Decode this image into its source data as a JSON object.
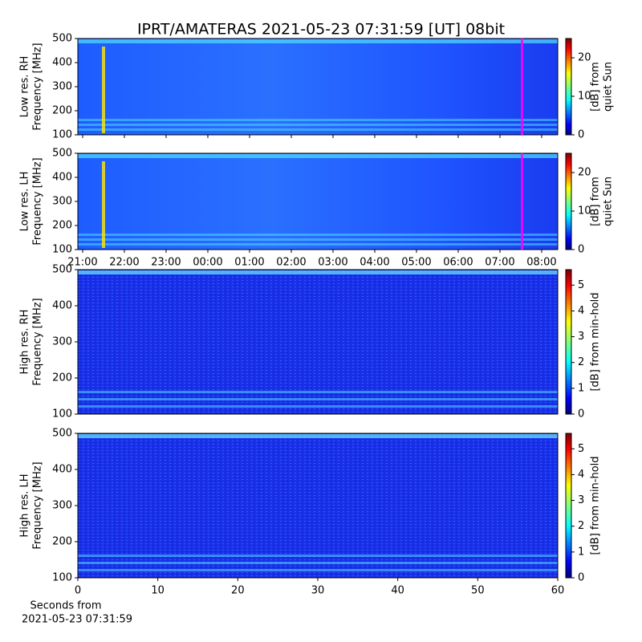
{
  "title": "IPRT/AMATERAS 2021-05-23 07:31:59 [UT]   08bit",
  "chart_data": [
    {
      "type": "heatmap",
      "ylabel": [
        "Low res. RH",
        "Frequency [MHz]"
      ],
      "xlim": [
        20.885,
        32.385
      ],
      "xticks": [
        21,
        22,
        23,
        24,
        25,
        26,
        27,
        28,
        29,
        30,
        31,
        32
      ],
      "xticklabels": false,
      "ylim": [
        100,
        500
      ],
      "yticks": [
        100,
        200,
        300,
        400,
        500
      ],
      "marker": {
        "x": 31.53,
        "color": "#ff00ff"
      },
      "colorbar": {
        "label": [
          "[dB] from",
          "quiet Sun"
        ],
        "lim": [
          0,
          25
        ],
        "ticks": [
          0,
          10,
          20
        ]
      }
    },
    {
      "type": "heatmap",
      "ylabel": [
        "Low res. LH",
        "Frequency [MHz]"
      ],
      "xlim": [
        20.885,
        32.385
      ],
      "xticks": [
        {
          "value": 21,
          "label": "21:00"
        },
        {
          "value": 22,
          "label": "22:00"
        },
        {
          "value": 23,
          "label": "23:00"
        },
        {
          "value": 24,
          "label": "00:00"
        },
        {
          "value": 25,
          "label": "01:00"
        },
        {
          "value": 26,
          "label": "02:00"
        },
        {
          "value": 27,
          "label": "03:00"
        },
        {
          "value": 28,
          "label": "04:00"
        },
        {
          "value": 29,
          "label": "05:00"
        },
        {
          "value": 30,
          "label": "06:00"
        },
        {
          "value": 31,
          "label": "07:00"
        },
        {
          "value": 32,
          "label": "08:00"
        }
      ],
      "ylim": [
        100,
        500
      ],
      "yticks": [
        100,
        200,
        300,
        400,
        500
      ],
      "marker": {
        "x": 31.53,
        "color": "#ff00ff"
      },
      "colorbar": {
        "label": [
          "[dB] from",
          "quiet Sun"
        ],
        "lim": [
          0,
          25
        ],
        "ticks": [
          0,
          10,
          20
        ]
      }
    },
    {
      "type": "heatmap",
      "ylabel": [
        "High res. RH",
        "Frequency [MHz]"
      ],
      "ylim": [
        100,
        500
      ],
      "yticks": [
        100,
        200,
        300,
        400,
        500
      ],
      "colorbar": {
        "label": [
          "[dB] from min-hold"
        ],
        "lim": [
          0,
          5.6
        ],
        "ticks": [
          0,
          1,
          2,
          3,
          4,
          5
        ]
      }
    },
    {
      "type": "heatmap",
      "ylabel": [
        "High res. LH",
        "Frequency [MHz]"
      ],
      "xlim": [
        0,
        60
      ],
      "xticks": [
        0,
        10,
        20,
        30,
        40,
        50,
        60
      ],
      "xlabel": [
        "Seconds from",
        "2021-05-23 07:31:59"
      ],
      "ylim": [
        100,
        500
      ],
      "yticks": [
        100,
        200,
        300,
        400,
        500
      ],
      "colorbar": {
        "label": [
          "[dB] from min-hold"
        ],
        "lim": [
          0,
          5.6
        ],
        "ticks": [
          0,
          1,
          2,
          3,
          4,
          5
        ]
      }
    }
  ]
}
